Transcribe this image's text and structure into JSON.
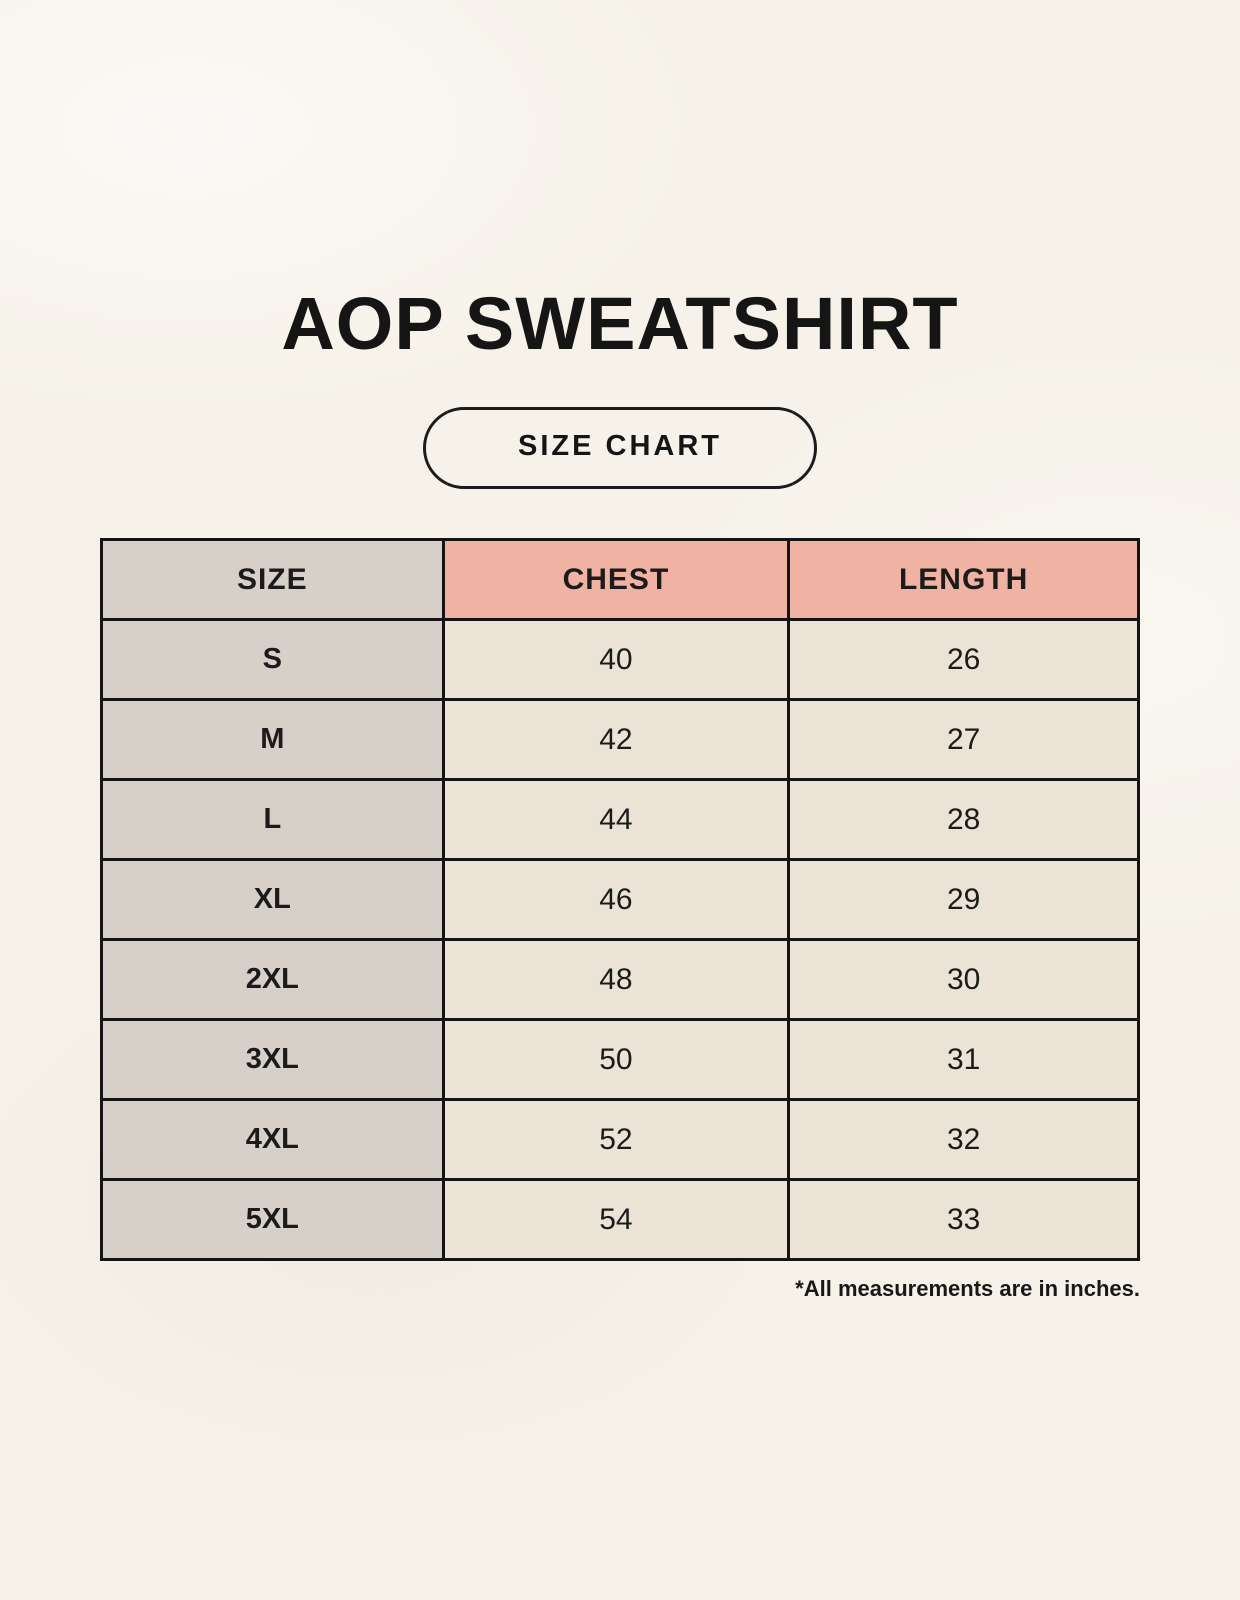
{
  "page": {
    "title": "AOP SWEATSHIRT",
    "badge_label": "SIZE CHART",
    "footnote": "*All measurements are in inches."
  },
  "colors": {
    "background": "#f6f2e9",
    "size_column_bg": "#d7d0c9",
    "header_accent_bg": "#f0b2a2",
    "data_cell_bg": "#eae3d6",
    "border": "#141414",
    "text": "#1b1b1b"
  },
  "chart_data": {
    "type": "table",
    "title": "AOP SWEATSHIRT",
    "subtitle": "SIZE CHART",
    "columns": [
      "SIZE",
      "CHEST",
      "LENGTH"
    ],
    "rows": [
      [
        "S",
        "40",
        "26"
      ],
      [
        "M",
        "42",
        "27"
      ],
      [
        "L",
        "44",
        "28"
      ],
      [
        "XL",
        "46",
        "29"
      ],
      [
        "2XL",
        "48",
        "30"
      ],
      [
        "3XL",
        "50",
        "31"
      ],
      [
        "4XL",
        "52",
        "32"
      ],
      [
        "5XL",
        "54",
        "33"
      ]
    ],
    "units": "inches",
    "note": "*All measurements are in inches."
  }
}
